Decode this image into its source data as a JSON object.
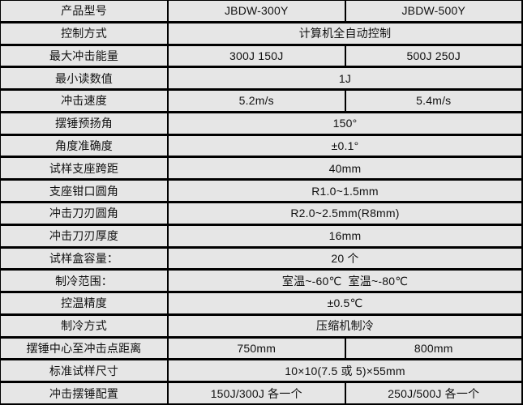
{
  "table": {
    "colors": {
      "cell_bg": "#e6e6e6",
      "border": "#000000",
      "text": "#111111"
    },
    "rows": [
      {
        "label": "产品型号",
        "values": [
          "JBDW-300Y",
          "JBDW-500Y"
        ]
      },
      {
        "label": "控制方式",
        "values": [
          "计算机全自动控制"
        ]
      },
      {
        "label": "最大冲击能量",
        "values": [
          "300J 150J",
          "500J 250J"
        ]
      },
      {
        "label": "最小读数值",
        "values": [
          "1J"
        ]
      },
      {
        "label": "冲击速度",
        "values": [
          "5.2m/s",
          "5.4m/s"
        ]
      },
      {
        "label": "摆锤预扬角",
        "values": [
          "150°"
        ]
      },
      {
        "label": "角度准确度",
        "values": [
          "±0.1°"
        ]
      },
      {
        "label": "试样支座跨距",
        "values": [
          "40mm"
        ]
      },
      {
        "label": "支座钳口圆角",
        "values": [
          "R1.0~1.5mm"
        ]
      },
      {
        "label": "冲击刀刃圆角",
        "values": [
          "R2.0~2.5mm(R8mm)"
        ]
      },
      {
        "label": "冲击刀刃厚度",
        "values": [
          "16mm"
        ]
      },
      {
        "label": "试样盒容量：",
        "values": [
          "20 个"
        ]
      },
      {
        "label": "制冷范围：",
        "values": [
          "室温~-60℃  室温~-80℃"
        ]
      },
      {
        "label": "控温精度",
        "values": [
          "±0.5℃"
        ]
      },
      {
        "label": "制冷方式",
        "values": [
          "压缩机制冷"
        ]
      },
      {
        "label": "摆锤中心至冲击点距离",
        "values": [
          "750mm",
          "800mm"
        ]
      },
      {
        "label": "标准试样尺寸",
        "values": [
          "10×10(7.5 或 5)×55mm"
        ]
      },
      {
        "label": "冲击摆锤配置",
        "values": [
          "150J/300J 各一个",
          "250J/500J 各一个"
        ]
      }
    ]
  }
}
